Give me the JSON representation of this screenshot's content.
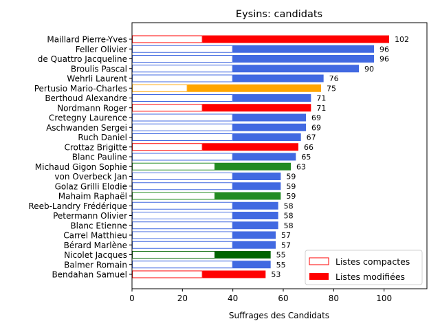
{
  "chart_data": {
    "type": "bar",
    "orientation": "horizontal",
    "title": "Eysins: candidats",
    "xlabel": "Suffrages des Candidats",
    "ylabel": "",
    "xlim": [
      0,
      117
    ],
    "xticks": [
      0,
      20,
      40,
      60,
      80,
      100
    ],
    "grid": false,
    "legend_position": "bottom-right",
    "legend": [
      {
        "label": "Listes compactes",
        "style": "outline",
        "color": "#ff0000"
      },
      {
        "label": "Listes modifiées",
        "style": "filled",
        "color": "#ff0000"
      }
    ],
    "categories": [
      "Maillard Pierre-Yves",
      "Feller Olivier",
      "de Quattro Jacqueline",
      "Broulis Pascal",
      "Wehrli Laurent",
      "Pertusio Mario-Charles",
      "Berthoud Alexandre",
      "Nordmann Roger",
      "Cretegny Laurence",
      "Aschwanden Sergei",
      "Ruch Daniel",
      "Crottaz Brigitte",
      "Blanc Pauline",
      "Michaud Gigon Sophie",
      "von Overbeck Jan",
      "Golaz Grilli Elodie",
      "Mahaim Raphaël",
      "Reeb-Landry Frédérique",
      "Petermann Olivier",
      "Blanc Etienne",
      "Carrel Matthieu",
      "Bérard Marlène",
      "Nicolet Jacques",
      "Balmer Romain",
      "Bendahan Samuel"
    ],
    "totals": [
      102,
      96,
      96,
      90,
      76,
      75,
      71,
      71,
      69,
      69,
      67,
      66,
      65,
      63,
      59,
      59,
      59,
      58,
      58,
      58,
      57,
      57,
      55,
      55,
      53
    ],
    "compact": [
      28,
      40,
      40,
      40,
      40,
      22,
      40,
      28,
      40,
      40,
      40,
      28,
      40,
      33,
      40,
      40,
      33,
      40,
      40,
      40,
      40,
      40,
      33,
      40,
      28
    ],
    "colors": [
      "#ff0000",
      "#4169e1",
      "#4169e1",
      "#4169e1",
      "#4169e1",
      "#ffa500",
      "#4169e1",
      "#ff0000",
      "#4169e1",
      "#4169e1",
      "#4169e1",
      "#ff0000",
      "#4169e1",
      "#228b22",
      "#4169e1",
      "#4169e1",
      "#228b22",
      "#4169e1",
      "#4169e1",
      "#4169e1",
      "#4169e1",
      "#4169e1",
      "#006400",
      "#4169e1",
      "#ff0000"
    ]
  }
}
